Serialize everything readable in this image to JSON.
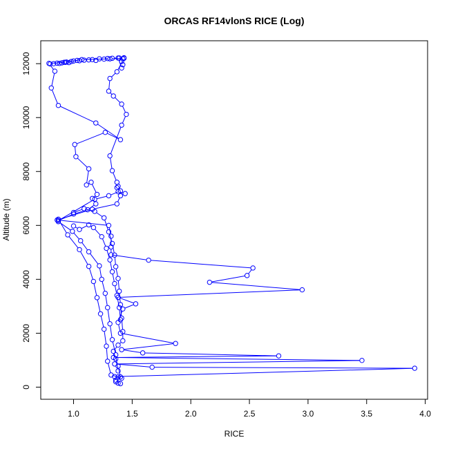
{
  "chart_data": {
    "type": "line",
    "title": "ORCAS RF14vlonS RICE (Log)",
    "xlabel": "RICE",
    "ylabel": "Altitude (m)",
    "xlim": [
      0.72,
      4.02
    ],
    "ylim": [
      -450,
      12850
    ],
    "xticks": [
      "1.0",
      "1.5",
      "2.0",
      "2.5",
      "3.0",
      "3.5",
      "4.0"
    ],
    "yticks": [
      "0",
      "2000",
      "4000",
      "6000",
      "8000",
      "10000",
      "12000"
    ],
    "grid": false,
    "series_color": "#0000ff",
    "marker": "open-circle",
    "series": [
      {
        "points": [
          [
            1.36,
            200
          ],
          [
            1.38,
            150
          ],
          [
            1.4,
            130
          ],
          [
            1.36,
            260
          ],
          [
            1.41,
            330
          ],
          [
            1.35,
            390
          ],
          [
            3.91,
            700
          ],
          [
            1.67,
            740
          ],
          [
            1.35,
            860
          ],
          [
            3.46,
            990
          ],
          [
            1.34,
            1100
          ],
          [
            2.75,
            1160
          ],
          [
            1.59,
            1270
          ],
          [
            1.41,
            1390
          ],
          [
            1.87,
            1620
          ],
          [
            1.4,
            2000
          ],
          [
            1.38,
            2400
          ],
          [
            1.42,
            2900
          ],
          [
            1.53,
            3090
          ],
          [
            1.38,
            3330
          ],
          [
            2.95,
            3610
          ],
          [
            2.16,
            3890
          ],
          [
            2.48,
            4140
          ],
          [
            2.53,
            4420
          ],
          [
            1.64,
            4710
          ],
          [
            1.32,
            4910
          ],
          [
            1.32,
            5200
          ],
          [
            1.32,
            5600
          ],
          [
            1.3,
            6000
          ],
          [
            0.86,
            6200
          ],
          [
            1.16,
            6600
          ],
          [
            1.37,
            6800
          ],
          [
            1.4,
            7100
          ],
          [
            1.44,
            7180
          ],
          [
            1.38,
            7250
          ],
          [
            1.37,
            7400
          ],
          [
            1.4,
            7280
          ],
          [
            1.3,
            7100
          ],
          [
            1.18,
            6970
          ],
          [
            0.87,
            6180
          ],
          [
            1.0,
            6420
          ],
          [
            1.12,
            6580
          ],
          [
            1.19,
            6800
          ],
          [
            1.16,
            7000
          ],
          [
            1.2,
            7150
          ],
          [
            1.15,
            7600
          ],
          [
            1.11,
            7500
          ],
          [
            1.13,
            8100
          ],
          [
            1.02,
            8550
          ],
          [
            1.01,
            9000
          ],
          [
            1.27,
            9450
          ],
          [
            1.4,
            9180
          ],
          [
            1.19,
            9800
          ],
          [
            0.87,
            10450
          ],
          [
            0.81,
            11100
          ],
          [
            0.84,
            11720
          ],
          [
            0.79,
            12010
          ],
          [
            0.93,
            12050
          ],
          [
            1.07,
            12150
          ],
          [
            1.31,
            12180
          ],
          [
            1.43,
            12200
          ],
          [
            1.37,
            11700
          ],
          [
            1.31,
            11450
          ],
          [
            1.3,
            10980
          ],
          [
            1.34,
            10800
          ],
          [
            1.41,
            10500
          ],
          [
            1.45,
            10120
          ],
          [
            1.41,
            9720
          ],
          [
            1.31,
            8580
          ],
          [
            1.33,
            8030
          ],
          [
            1.37,
            7600
          ],
          [
            1.38,
            7450
          ]
        ]
      },
      {
        "points": [
          [
            0.87,
            6230
          ],
          [
            0.95,
            5650
          ],
          [
            1.05,
            5100
          ],
          [
            1.13,
            4480
          ],
          [
            1.17,
            3920
          ],
          [
            1.2,
            3320
          ],
          [
            1.23,
            2720
          ],
          [
            1.26,
            2150
          ],
          [
            1.28,
            1520
          ],
          [
            1.29,
            960
          ],
          [
            1.32,
            450
          ],
          [
            1.38,
            380
          ]
        ]
      },
      {
        "points": [
          [
            0.87,
            6140
          ],
          [
            0.99,
            5780
          ],
          [
            1.06,
            5430
          ],
          [
            1.13,
            5020
          ],
          [
            1.22,
            4500
          ],
          [
            1.24,
            4000
          ],
          [
            1.27,
            3480
          ],
          [
            1.29,
            2950
          ],
          [
            1.31,
            2350
          ],
          [
            1.33,
            1760
          ],
          [
            1.36,
            1200
          ],
          [
            1.38,
            600
          ]
        ]
      },
      {
        "points": [
          [
            1.0,
            5980
          ],
          [
            1.05,
            5850
          ],
          [
            1.13,
            6020
          ],
          [
            1.17,
            5920
          ],
          [
            1.24,
            5580
          ],
          [
            1.28,
            5150
          ],
          [
            1.31,
            4720
          ],
          [
            1.33,
            4280
          ],
          [
            1.35,
            3840
          ],
          [
            1.37,
            3400
          ],
          [
            1.39,
            2950
          ],
          [
            1.4,
            2500
          ]
        ]
      },
      {
        "points": [
          [
            1.0,
            6480
          ],
          [
            1.09,
            6620
          ],
          [
            1.18,
            6520
          ],
          [
            1.26,
            6280
          ],
          [
            1.3,
            5760
          ],
          [
            1.33,
            5330
          ],
          [
            1.35,
            4900
          ],
          [
            1.36,
            4470
          ],
          [
            1.38,
            4030
          ],
          [
            1.39,
            3560
          ],
          [
            1.4,
            3060
          ],
          [
            1.41,
            2560
          ],
          [
            1.42,
            2060
          ],
          [
            1.42,
            1720
          ],
          [
            1.38,
            1560
          ],
          [
            1.34,
            1330
          ],
          [
            1.36,
            1050
          ],
          [
            1.38,
            780
          ],
          [
            1.4,
            380
          ]
        ]
      },
      {
        "points": [
          [
            0.8,
            11990
          ],
          [
            0.83,
            12000
          ],
          [
            0.86,
            12020
          ],
          [
            0.88,
            12010
          ],
          [
            0.9,
            12030
          ],
          [
            0.92,
            12050
          ],
          [
            0.94,
            12060
          ],
          [
            0.96,
            12040
          ],
          [
            0.98,
            12080
          ],
          [
            1.0,
            12100
          ],
          [
            1.03,
            12120
          ],
          [
            1.05,
            12110
          ],
          [
            1.09,
            12130
          ],
          [
            1.13,
            12140
          ],
          [
            1.16,
            12150
          ],
          [
            1.19,
            12120
          ],
          [
            1.22,
            12180
          ],
          [
            1.26,
            12170
          ],
          [
            1.29,
            12190
          ],
          [
            1.33,
            12200
          ],
          [
            1.39,
            12210
          ],
          [
            1.42,
            12180
          ],
          [
            1.41,
            12080
          ],
          [
            1.42,
            11960
          ],
          [
            1.41,
            11840
          ],
          [
            1.38,
            12210
          ],
          [
            1.43,
            12220
          ]
        ]
      }
    ]
  }
}
